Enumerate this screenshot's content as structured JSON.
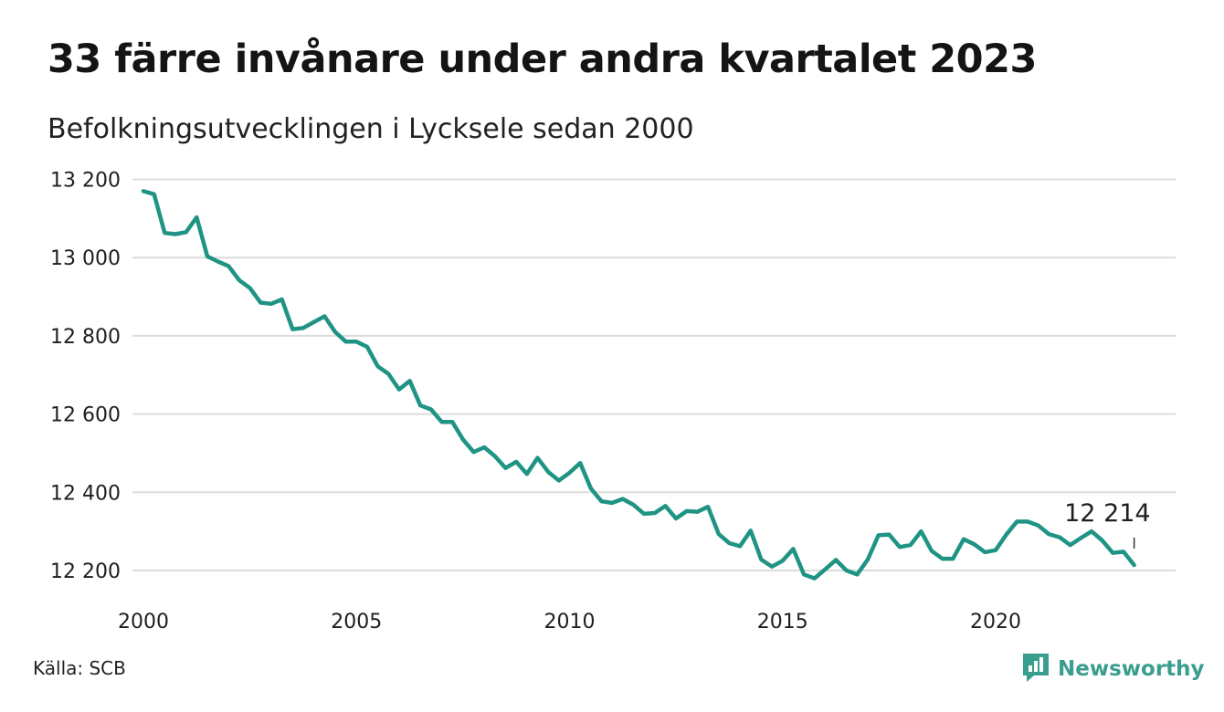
{
  "title": "33 färre invånare under andra kvartalet 2023",
  "subtitle": "Befolkningsutvecklingen i Lycksele sedan 2000",
  "source": "Källa: SCB",
  "brand": {
    "name": "Newsworthy",
    "icon": "newsworthy-logo-icon",
    "color": "#3a9e8e"
  },
  "colors": {
    "line": "#1f9484",
    "grid": "#dcdcdc"
  },
  "chart_data": {
    "type": "line",
    "title": "33 färre invånare under andra kvartalet 2023",
    "subtitle": "Befolkningsutvecklingen i Lycksele sedan 2000",
    "xlabel": "",
    "ylabel": "",
    "xlim": [
      2000,
      2024
    ],
    "ylim": [
      12150,
      13220
    ],
    "grid": true,
    "y_ticks": [
      {
        "value": 12200,
        "label": "12 200"
      },
      {
        "value": 12400,
        "label": "12 400"
      },
      {
        "value": 12600,
        "label": "12 600"
      },
      {
        "value": 12800,
        "label": "12 800"
      },
      {
        "value": 13000,
        "label": "13 000"
      },
      {
        "value": 13200,
        "label": "13 200"
      }
    ],
    "x_ticks": [
      {
        "value": 2000,
        "label": "2000"
      },
      {
        "value": 2005,
        "label": "2005"
      },
      {
        "value": 2010,
        "label": "2010"
      },
      {
        "value": 2015,
        "label": "2015"
      },
      {
        "value": 2020,
        "label": "2020"
      }
    ],
    "series": [
      {
        "name": "",
        "start": "2000 Q1",
        "frequency": "quarterly",
        "x": [
          2000.0,
          2000.25,
          2000.5,
          2000.75,
          2001.0,
          2001.25,
          2001.5,
          2001.75,
          2002.0,
          2002.25,
          2002.5,
          2002.75,
          2003.0,
          2003.25,
          2003.5,
          2003.75,
          2004.0,
          2004.25,
          2004.5,
          2004.75,
          2005.0,
          2005.25,
          2005.5,
          2005.75,
          2006.0,
          2006.25,
          2006.5,
          2006.75,
          2007.0,
          2007.25,
          2007.5,
          2007.75,
          2008.0,
          2008.25,
          2008.5,
          2008.75,
          2009.0,
          2009.25,
          2009.5,
          2009.75,
          2010.0,
          2010.25,
          2010.5,
          2010.75,
          2011.0,
          2011.25,
          2011.5,
          2011.75,
          2012.0,
          2012.25,
          2012.5,
          2012.75,
          2013.0,
          2013.25,
          2013.5,
          2013.75,
          2014.0,
          2014.25,
          2014.5,
          2014.75,
          2015.0,
          2015.25,
          2015.5,
          2015.75,
          2016.0,
          2016.25,
          2016.5,
          2016.75,
          2017.0,
          2017.25,
          2017.5,
          2017.75,
          2018.0,
          2018.25,
          2018.5,
          2018.75,
          2019.0,
          2019.25,
          2019.5,
          2019.75,
          2020.0,
          2020.25,
          2020.5,
          2020.75,
          2021.0,
          2021.25,
          2021.5,
          2021.75,
          2022.0,
          2022.25,
          2022.5,
          2022.75,
          2023.0,
          2023.25
        ],
        "values": [
          13170,
          13162,
          13063,
          13060,
          13065,
          13103,
          13003,
          12990,
          12978,
          12942,
          12922,
          12885,
          12882,
          12893,
          12817,
          12820,
          12835,
          12850,
          12810,
          12785,
          12785,
          12772,
          12722,
          12703,
          12663,
          12685,
          12622,
          12612,
          12580,
          12580,
          12535,
          12503,
          12515,
          12492,
          12462,
          12478,
          12447,
          12488,
          12452,
          12430,
          12450,
          12475,
          12410,
          12377,
          12373,
          12383,
          12368,
          12345,
          12347,
          12365,
          12333,
          12352,
          12350,
          12363,
          12293,
          12270,
          12262,
          12302,
          12228,
          12210,
          12225,
          12255,
          12190,
          12180,
          12203,
          12227,
          12200,
          12190,
          12228,
          12290,
          12292,
          12260,
          12265,
          12300,
          12250,
          12230,
          12230,
          12280,
          12267,
          12247,
          12252,
          12292,
          12325,
          12325,
          12315,
          12293,
          12285,
          12265,
          12283,
          12300,
          12277,
          12245,
          12248,
          12214
        ]
      }
    ],
    "annotations": [
      {
        "text": "12 214",
        "x": 2023.25,
        "value": 12214
      }
    ]
  }
}
